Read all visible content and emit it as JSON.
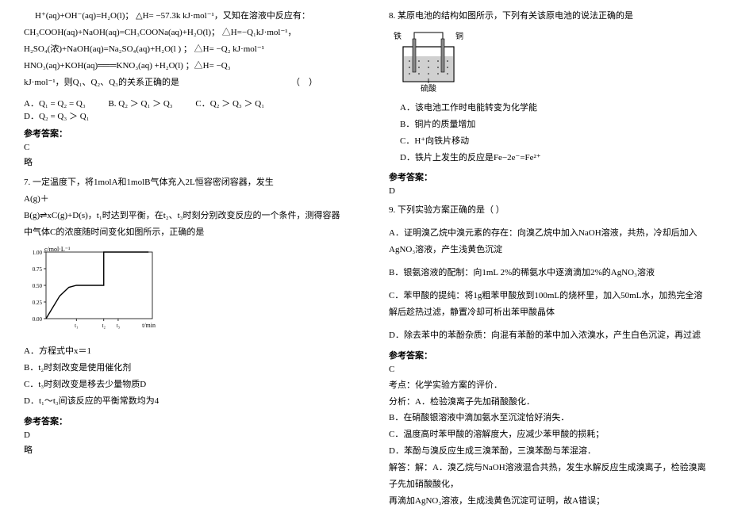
{
  "left": {
    "eq1": "H⁺(aq)+OH⁻(aq)=H₂O(l)；  △H= −57.3k  kJ·mol⁻¹，又知在溶液中反应有：",
    "eq2": "CH₃COOH(aq)+NaOH(aq)=CH₃COONa(aq)+H₂O(l)；   △H=−Q₁kJ·mol⁻¹，",
    "eq3": "H₂SO₄(浓)+NaOH(aq)=Na₂SO₄(aq)+H₂O(l ) ；  △H= −Q₂  kJ·mol⁻¹",
    "eq4": "HNO₃(aq)+KOH(aq)═══KNO₃(aq) +H₂O(l) ；△H= −Q₃",
    "eq5": "kJ·mol⁻¹，则Q₁、Q₂、Q₃的关系正确的是",
    "optA": "A．Q₁ = Q₂ = Q₃",
    "optB": "B. Q₂ ＞ Q₁ ＞ Q₃",
    "optC": "C．Q₂ ＞ Q₃ ＞ Q₁",
    "optD": "D．Q₂ = Q₃ ＞ Q₁",
    "ref_label": "参考答案：",
    "ans6": "C",
    "brief": "略",
    "q7_stem1": "7. 一定温度下，将1molA和1molB气体充入2L恒容密闭容器，发生",
    "q7_stem2": "A(g)＋",
    "q7_stem3": "B(g)⇌xC(g)+D(s)，t₁时达到平衡，在t₂、t₃时刻分别改变反应的一个条件，测得容器中气体C的浓度随时间变化如图所示，正确的是",
    "q7_optA": "A．方程式中x＝1",
    "q7_optB": "B．t₂时刻改变是使用催化剂",
    "q7_optC": "C．t₃时刻改变是移去少量物质D",
    "q7_optD": "D．t₁～t₃间该反应的平衡常数均为4",
    "ans7": "D",
    "chart": {
      "type": "line",
      "width": 170,
      "height": 110,
      "bg": "#ffffff",
      "axis_color": "#000000",
      "line_color": "#000000",
      "xlabel": "t/min",
      "ylabel": "c/mol·L⁻¹",
      "yticks": [
        0,
        0.25,
        0.5,
        0.75,
        1.0
      ],
      "xticks_labels": [
        "t₁",
        "t₂",
        "t₃"
      ],
      "points": [
        [
          0,
          0
        ],
        [
          18,
          0.34
        ],
        [
          30,
          0.47
        ],
        [
          40,
          0.5
        ],
        [
          60,
          0.5
        ],
        [
          76,
          0.5
        ],
        [
          76,
          1.0
        ],
        [
          135,
          1.0
        ]
      ],
      "label_fontsize": 8,
      "tick_fontsize": 7
    }
  },
  "right": {
    "q8_stem": "8. 某原电池的结构如图所示，下列有关该原电池的说法正确的是",
    "battery": {
      "left_label": "铁",
      "right_label": "铜",
      "bottom_label": "硫酸",
      "container_color": "#000000",
      "liquid_color": "#d0d0d0"
    },
    "q8_optA": "A．该电池工作时电能转变为化学能",
    "q8_optB": "B．铜片的质量增加",
    "q8_optC": "C．H⁺向铁片移动",
    "q8_optD": "D．铁片上发生的反应是Fe−2e⁻=Fe²⁺",
    "ref_label": "参考答案：",
    "ans8": "D",
    "q9_stem": "9. 下列实验方案正确的是（     ）",
    "q9_optA": "A．证明溴乙烷中溴元素的存在：向溴乙烷中加入NaOH溶液，共热，冷却后加入AgNO₃溶液，产生浅黄色沉淀",
    "q9_optB": "B．银氨溶液的配制：向1mL 2%的稀氨水中逐滴滴加2%的AgNO₃溶液",
    "q9_optC": "C．苯甲酸的提纯：将1g粗苯甲酸放到100mL的烧杯里，加入50mL水，加热完全溶解后趁热过滤，静置冷却可析出苯甲酸晶体",
    "q9_optD": "D．除去苯中的苯酚杂质：向混有苯酚的苯中加入浓溴水，产生白色沉淀，再过滤",
    "ans9": "C",
    "kd": "考点：化学实验方案的评价．",
    "fx": "分析：A．检验溴离子先加硝酸酸化．",
    "fxB": "B．在硝酸银溶液中滴加氨水至沉淀恰好消失．",
    "fxC": "C．温度高时苯甲酸的溶解度大，应减少苯甲酸的损耗；",
    "fxD": "D．苯酚与溴反应生成三溴苯酚，三溴苯酚与苯混溶．",
    "jd1": "解答：解：A．溴乙烷与NaOH溶液混合共热，发生水解反应生成溴离子，检验溴离子先加硝酸酸化，",
    "jd2": "再滴加AgNO₃溶液，生成浅黄色沉淀可证明，故A错误；"
  }
}
